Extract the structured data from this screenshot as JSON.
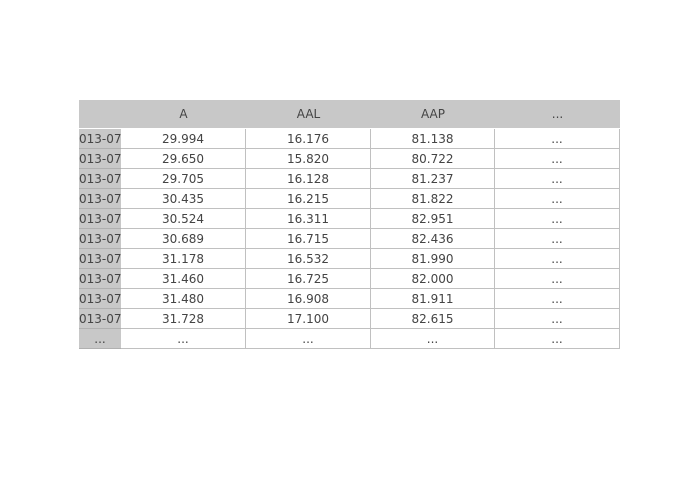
{
  "table": {
    "header": [
      "A",
      "AAL",
      "AAP",
      "..."
    ],
    "rows": [
      {
        "index": "013-07-",
        "cells": [
          "29.994",
          "16.176",
          "81.138",
          "..."
        ]
      },
      {
        "index": "013-07-",
        "cells": [
          "29.650",
          "15.820",
          "80.722",
          "..."
        ]
      },
      {
        "index": "013-07-",
        "cells": [
          "29.705",
          "16.128",
          "81.237",
          "..."
        ]
      },
      {
        "index": "013-07-",
        "cells": [
          "30.435",
          "16.215",
          "81.822",
          "..."
        ]
      },
      {
        "index": "013-07-",
        "cells": [
          "30.524",
          "16.311",
          "82.951",
          "..."
        ]
      },
      {
        "index": "013-07-",
        "cells": [
          "30.689",
          "16.715",
          "82.436",
          "..."
        ]
      },
      {
        "index": "013-07-",
        "cells": [
          "31.178",
          "16.532",
          "81.990",
          "..."
        ]
      },
      {
        "index": "013-07-",
        "cells": [
          "31.460",
          "16.725",
          "82.000",
          "..."
        ]
      },
      {
        "index": "013-07-",
        "cells": [
          "31.480",
          "16.908",
          "81.911",
          "..."
        ]
      },
      {
        "index": "013-07-",
        "cells": [
          "31.728",
          "17.100",
          "82.615",
          "..."
        ]
      },
      {
        "index": "...",
        "cells": [
          "...",
          "...",
          "...",
          "..."
        ]
      }
    ]
  }
}
